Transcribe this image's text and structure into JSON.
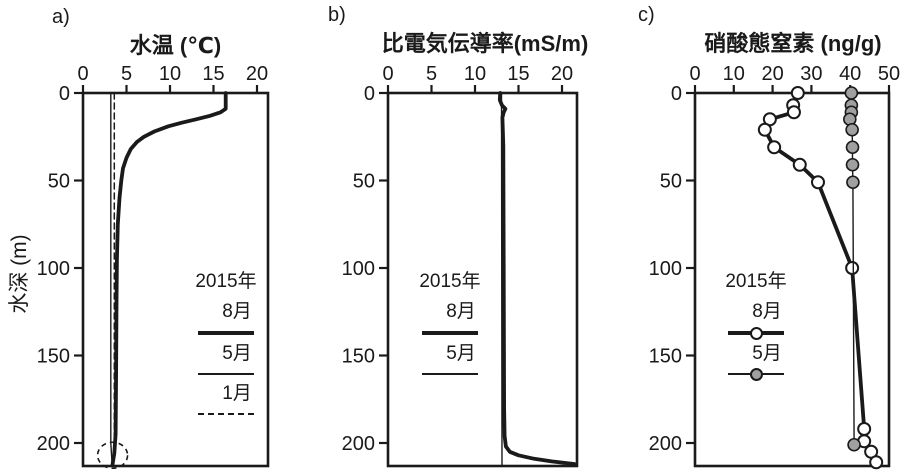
{
  "colors": {
    "ink": "#1a1a1a",
    "open_marker_fill": "#ffffff",
    "gray_marker_fill": "#a0a0a0",
    "background": "#ffffff"
  },
  "y_axis_label": "水深 (m)",
  "chart_data": [
    {
      "id": "a",
      "letter": "a)",
      "type": "line",
      "title": "水温 (℃)",
      "xlabel": "水温 (℃)",
      "ylabel": "水深 (m)",
      "x_ticks": [
        0,
        5,
        10,
        15,
        20
      ],
      "y_ticks": [
        0,
        50,
        100,
        150,
        200
      ],
      "xlim": [
        0,
        21.3
      ],
      "depth_lim": [
        0,
        213
      ],
      "legend": {
        "year": "2015年",
        "aug": "8月",
        "may": "5月",
        "jan": "1月"
      },
      "series": [
        {
          "name": "8月",
          "style": "thick-solid",
          "marker": null,
          "depth": [
            0,
            9,
            11,
            13,
            15,
            17,
            19,
            22,
            25,
            28,
            32,
            37,
            43,
            50,
            60,
            75,
            95,
            120,
            160,
            195,
            206,
            212
          ],
          "x": [
            16.4,
            16.4,
            15.8,
            14.6,
            13.0,
            11.3,
            9.8,
            8.2,
            7.0,
            6.2,
            5.5,
            5.0,
            4.6,
            4.4,
            4.2,
            4.0,
            3.9,
            3.85,
            3.8,
            3.75,
            3.6,
            3.4
          ]
        },
        {
          "name": "5月",
          "style": "thin-solid",
          "marker": null,
          "depth": [
            0,
            200,
            212
          ],
          "x": [
            3.2,
            3.2,
            3.35
          ]
        },
        {
          "name": "1月",
          "style": "dashed",
          "marker": null,
          "depth": [
            0,
            200,
            212
          ],
          "x": [
            3.6,
            3.6,
            3.45
          ]
        }
      ],
      "annotation": {
        "shape": "dashed-ellipse",
        "x_value": 3.4,
        "depth": 207,
        "meaning": "bottom-convergence-highlight"
      }
    },
    {
      "id": "b",
      "letter": "b)",
      "type": "line",
      "title": "比電気伝導率(mS/m)",
      "xlabel": "比電気伝導率(mS/m)",
      "ylabel": "水深 (m)",
      "x_ticks": [
        0,
        5,
        10,
        15,
        20
      ],
      "y_ticks": [
        0,
        50,
        100,
        150,
        200
      ],
      "xlim": [
        0,
        21.7
      ],
      "depth_lim": [
        0,
        213
      ],
      "legend": {
        "year": "2015年",
        "aug": "8月",
        "may": "5月"
      },
      "series": [
        {
          "name": "8月",
          "style": "thick-solid",
          "marker": null,
          "depth": [
            0,
            4,
            7,
            9,
            11,
            14,
            30,
            100,
            180,
            196,
            202,
            205,
            207,
            209,
            210.5,
            212
          ],
          "x": [
            12.9,
            12.85,
            13.1,
            13.5,
            13.3,
            13.15,
            13.25,
            13.3,
            13.35,
            13.4,
            13.55,
            14.0,
            15.0,
            16.8,
            18.8,
            21.4
          ]
        },
        {
          "name": "5月",
          "style": "thin-solid",
          "marker": null,
          "depth": [
            0,
            213
          ],
          "x": [
            13.05,
            13.1
          ]
        }
      ],
      "annotation": null
    },
    {
      "id": "c",
      "letter": "c)",
      "type": "line",
      "title": "硝酸態窒素 (ng/g)",
      "xlabel": "硝酸態窒素 (ng/g)",
      "ylabel": "水深 (m)",
      "x_ticks": [
        0,
        10,
        20,
        30,
        40,
        50
      ],
      "y_ticks": [
        0,
        50,
        100,
        150,
        200
      ],
      "xlim": [
        0,
        50
      ],
      "depth_lim": [
        0,
        213
      ],
      "legend": {
        "year": "2015年",
        "aug": "8月",
        "may": "5月"
      },
      "series": [
        {
          "name": "8月",
          "style": "thick-solid",
          "marker": "open",
          "depth": [
            0,
            7,
            11,
            15,
            21,
            31,
            41,
            51,
            100,
            192,
            199,
            205,
            211
          ],
          "x": [
            26.5,
            25.3,
            25.5,
            19.3,
            18.0,
            20.4,
            27.0,
            31.7,
            40.5,
            43.6,
            43.6,
            45.4,
            46.7
          ]
        },
        {
          "name": "5月",
          "style": "thin-solid",
          "marker": "gray",
          "depth": [
            0,
            7,
            11,
            15,
            21,
            31,
            41,
            51,
            201
          ],
          "x": [
            40.3,
            40.3,
            40.3,
            39.9,
            40.5,
            40.6,
            40.6,
            40.7,
            41.0
          ]
        }
      ],
      "annotation": null
    }
  ]
}
